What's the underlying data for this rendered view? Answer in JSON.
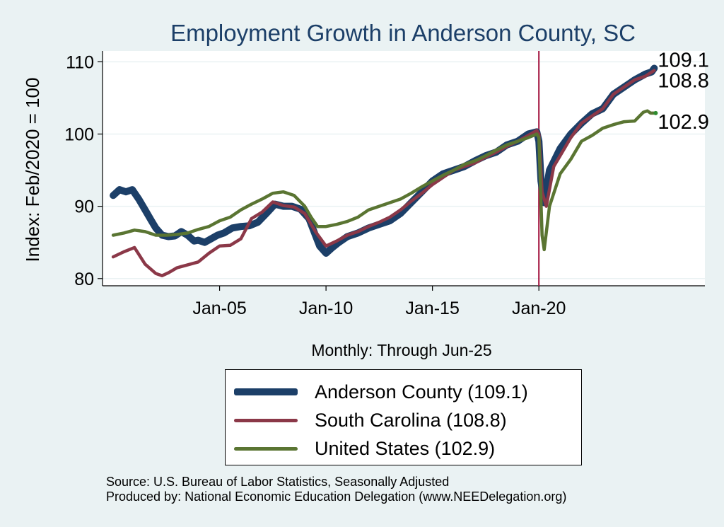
{
  "chart_data": {
    "type": "line",
    "title": "Employment Growth in Anderson  County, SC",
    "ylabel": "Index: Feb/2020 = 100",
    "xlabel": "Monthly: Through Jun-25",
    "ylim": [
      79,
      111.5
    ],
    "xlim": [
      1999.5,
      2027.8
    ],
    "yticks": [
      80,
      90,
      100,
      110
    ],
    "xticks": [
      {
        "label": "Jan-05",
        "x": 2005.0
      },
      {
        "label": "Jan-10",
        "x": 2010.0
      },
      {
        "label": "Jan-15",
        "x": 2015.0
      },
      {
        "label": "Jan-20",
        "x": 2020.0
      }
    ],
    "reference_line": {
      "x": 2020.0,
      "color": "#a3143f"
    },
    "series": [
      {
        "name": "Anderson  County",
        "legend_label": "Anderson  County (109.1)",
        "end_label": "109.1",
        "color": "#1c3f68",
        "width": 10,
        "points": [
          [
            2000.0,
            91.5
          ],
          [
            2000.3,
            92.3
          ],
          [
            2000.6,
            92.0
          ],
          [
            2000.9,
            92.3
          ],
          [
            2001.2,
            91.0
          ],
          [
            2001.5,
            89.5
          ],
          [
            2001.8,
            88.0
          ],
          [
            2002.0,
            87.0
          ],
          [
            2002.3,
            86.0
          ],
          [
            2002.6,
            85.8
          ],
          [
            2002.9,
            85.9
          ],
          [
            2003.2,
            86.5
          ],
          [
            2003.5,
            86.0
          ],
          [
            2003.8,
            85.2
          ],
          [
            2004.0,
            85.3
          ],
          [
            2004.3,
            85.0
          ],
          [
            2004.6,
            85.5
          ],
          [
            2004.9,
            86.0
          ],
          [
            2005.2,
            86.3
          ],
          [
            2005.6,
            87.0
          ],
          [
            2006.0,
            87.2
          ],
          [
            2006.4,
            87.3
          ],
          [
            2006.8,
            87.8
          ],
          [
            2007.2,
            89.0
          ],
          [
            2007.6,
            90.3
          ],
          [
            2008.0,
            90.0
          ],
          [
            2008.4,
            90.0
          ],
          [
            2008.8,
            89.6
          ],
          [
            2009.2,
            88.3
          ],
          [
            2009.5,
            86.0
          ],
          [
            2009.7,
            84.5
          ],
          [
            2010.0,
            83.5
          ],
          [
            2010.3,
            84.3
          ],
          [
            2010.6,
            85.0
          ],
          [
            2011.0,
            85.8
          ],
          [
            2011.5,
            86.3
          ],
          [
            2012.0,
            87.0
          ],
          [
            2012.5,
            87.5
          ],
          [
            2013.0,
            88.0
          ],
          [
            2013.5,
            89.0
          ],
          [
            2014.0,
            90.5
          ],
          [
            2014.5,
            92.0
          ],
          [
            2015.0,
            93.5
          ],
          [
            2015.5,
            94.5
          ],
          [
            2016.0,
            95.0
          ],
          [
            2016.5,
            95.5
          ],
          [
            2017.0,
            96.3
          ],
          [
            2017.5,
            97.0
          ],
          [
            2018.0,
            97.5
          ],
          [
            2018.5,
            98.5
          ],
          [
            2019.0,
            99.0
          ],
          [
            2019.5,
            100.0
          ],
          [
            2019.9,
            100.3
          ],
          [
            2020.0,
            99.0
          ],
          [
            2020.1,
            93.5
          ],
          [
            2020.25,
            90.5
          ],
          [
            2020.5,
            95.0
          ],
          [
            2021.0,
            98.0
          ],
          [
            2021.5,
            100.0
          ],
          [
            2022.0,
            101.5
          ],
          [
            2022.5,
            102.8
          ],
          [
            2023.0,
            103.5
          ],
          [
            2023.5,
            105.5
          ],
          [
            2024.0,
            106.5
          ],
          [
            2024.5,
            107.5
          ],
          [
            2025.0,
            108.3
          ],
          [
            2025.3,
            108.6
          ],
          [
            2025.42,
            109.1
          ]
        ]
      },
      {
        "name": "South Carolina",
        "legend_label": "South Carolina (108.8)",
        "end_label": "108.8",
        "color": "#8b3848",
        "width": 4.5,
        "points": [
          [
            2000.0,
            83.0
          ],
          [
            2000.5,
            83.7
          ],
          [
            2001.0,
            84.3
          ],
          [
            2001.5,
            82.0
          ],
          [
            2002.0,
            80.7
          ],
          [
            2002.3,
            80.4
          ],
          [
            2002.6,
            80.8
          ],
          [
            2003.0,
            81.5
          ],
          [
            2003.5,
            81.9
          ],
          [
            2004.0,
            82.3
          ],
          [
            2004.5,
            83.5
          ],
          [
            2005.0,
            84.5
          ],
          [
            2005.5,
            84.6
          ],
          [
            2006.0,
            85.5
          ],
          [
            2006.5,
            88.3
          ],
          [
            2007.0,
            89.2
          ],
          [
            2007.5,
            90.6
          ],
          [
            2008.0,
            90.1
          ],
          [
            2008.5,
            89.9
          ],
          [
            2009.0,
            89.0
          ],
          [
            2009.5,
            86.5
          ],
          [
            2010.0,
            84.5
          ],
          [
            2010.5,
            85.2
          ],
          [
            2011.0,
            86.0
          ],
          [
            2011.5,
            86.5
          ],
          [
            2012.0,
            87.2
          ],
          [
            2012.5,
            87.8
          ],
          [
            2013.0,
            88.5
          ],
          [
            2013.5,
            89.5
          ],
          [
            2014.0,
            90.7
          ],
          [
            2014.5,
            91.8
          ],
          [
            2015.0,
            93.0
          ],
          [
            2015.5,
            94.0
          ],
          [
            2016.0,
            95.0
          ],
          [
            2016.5,
            95.5
          ],
          [
            2017.0,
            96.0
          ],
          [
            2017.5,
            96.8
          ],
          [
            2018.0,
            97.5
          ],
          [
            2018.5,
            98.3
          ],
          [
            2019.0,
            99.0
          ],
          [
            2019.5,
            99.8
          ],
          [
            2019.9,
            100.5
          ],
          [
            2020.0,
            100.0
          ],
          [
            2020.15,
            92.0
          ],
          [
            2020.35,
            90.0
          ],
          [
            2020.7,
            95.5
          ],
          [
            2021.0,
            97.0
          ],
          [
            2021.5,
            99.5
          ],
          [
            2022.0,
            101.5
          ],
          [
            2022.5,
            102.5
          ],
          [
            2023.0,
            103.5
          ],
          [
            2023.5,
            105.5
          ],
          [
            2024.0,
            106.5
          ],
          [
            2024.5,
            107.5
          ],
          [
            2025.0,
            108.0
          ],
          [
            2025.42,
            108.8
          ]
        ]
      },
      {
        "name": "United States",
        "legend_label": "United States (102.9)",
        "end_label": "102.9",
        "color": "#5a7532",
        "width": 4.5,
        "points": [
          [
            2000.0,
            86.0
          ],
          [
            2000.5,
            86.3
          ],
          [
            2001.0,
            86.7
          ],
          [
            2001.5,
            86.5
          ],
          [
            2002.0,
            86.0
          ],
          [
            2002.5,
            86.0
          ],
          [
            2003.0,
            86.1
          ],
          [
            2003.5,
            86.3
          ],
          [
            2004.0,
            86.8
          ],
          [
            2004.5,
            87.2
          ],
          [
            2005.0,
            88.0
          ],
          [
            2005.5,
            88.5
          ],
          [
            2006.0,
            89.5
          ],
          [
            2006.5,
            90.3
          ],
          [
            2007.0,
            91.0
          ],
          [
            2007.5,
            91.8
          ],
          [
            2008.0,
            92.0
          ],
          [
            2008.5,
            91.5
          ],
          [
            2009.0,
            90.0
          ],
          [
            2009.3,
            88.5
          ],
          [
            2009.6,
            87.2
          ],
          [
            2010.0,
            87.2
          ],
          [
            2010.5,
            87.5
          ],
          [
            2011.0,
            87.9
          ],
          [
            2011.5,
            88.5
          ],
          [
            2012.0,
            89.5
          ],
          [
            2012.5,
            90.0
          ],
          [
            2013.0,
            90.5
          ],
          [
            2013.5,
            91.0
          ],
          [
            2014.0,
            91.8
          ],
          [
            2014.5,
            92.7
          ],
          [
            2015.0,
            93.5
          ],
          [
            2015.5,
            94.3
          ],
          [
            2016.0,
            95.0
          ],
          [
            2016.5,
            95.8
          ],
          [
            2017.0,
            96.3
          ],
          [
            2017.5,
            97.0
          ],
          [
            2018.0,
            97.8
          ],
          [
            2018.5,
            98.5
          ],
          [
            2019.0,
            99.0
          ],
          [
            2019.5,
            99.5
          ],
          [
            2019.9,
            100.0
          ],
          [
            2020.0,
            99.5
          ],
          [
            2020.15,
            86.0
          ],
          [
            2020.25,
            84.0
          ],
          [
            2020.5,
            90.0
          ],
          [
            2021.0,
            94.5
          ],
          [
            2021.5,
            96.5
          ],
          [
            2022.0,
            99.0
          ],
          [
            2022.5,
            99.8
          ],
          [
            2023.0,
            100.8
          ],
          [
            2023.5,
            101.3
          ],
          [
            2024.0,
            101.7
          ],
          [
            2024.5,
            101.8
          ],
          [
            2024.9,
            103.0
          ],
          [
            2025.1,
            103.2
          ],
          [
            2025.25,
            102.9
          ],
          [
            2025.42,
            102.9
          ]
        ]
      }
    ]
  },
  "footer": {
    "source": "Source: U.S. Bureau of Labor Statistics, Seasonally Adjusted",
    "produced_by": "Produced by: National Economic Education Delegation (www.NEEDelegation.org)"
  },
  "colors": {
    "background": "#eaf2f3",
    "plot_background": "#ffffff",
    "title": "#1c3f68",
    "grid": "#eaf2f3"
  }
}
